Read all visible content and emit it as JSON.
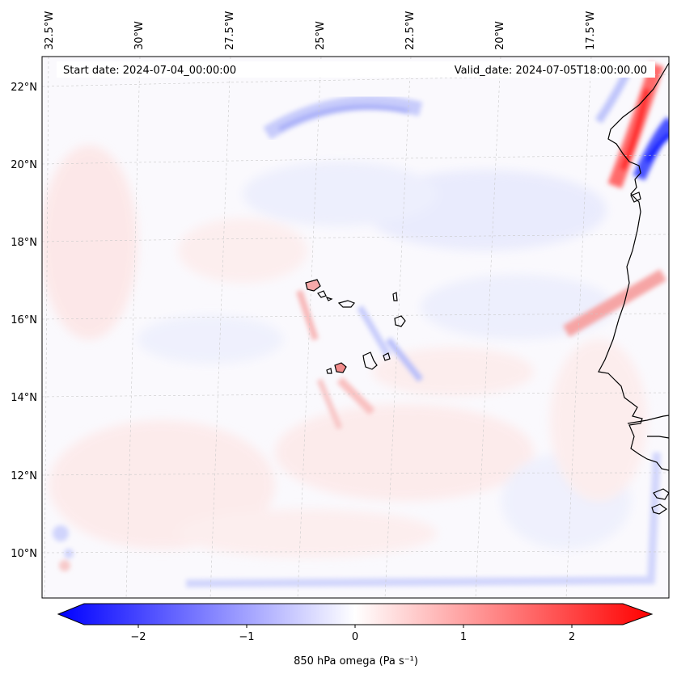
{
  "map": {
    "start_date": "Start date: 2024-07-04_00:00:00",
    "valid_date": "Valid_date: 2024-07-05T18:00:00.00",
    "lon_labels": [
      "32.5°W",
      "30°W",
      "27.5°W",
      "25°W",
      "22.5°W",
      "20°W",
      "17.5°W"
    ],
    "lat_labels": [
      "22°N",
      "20°N",
      "18°N",
      "16°N",
      "14°N",
      "12°N",
      "10°N"
    ],
    "extent": {
      "lon_min": -32.6,
      "lon_max": -15.0,
      "lat_min": 8.8,
      "lat_max": 22.8
    },
    "features": [
      "coastline",
      "gridlines",
      "filled-contours"
    ]
  },
  "colorbar": {
    "label": "850 hPa omega (Pa s⁻¹)",
    "ticks": [
      "−2",
      "−1",
      "0",
      "1",
      "2"
    ],
    "tick_values": [
      -2,
      -1,
      0,
      1,
      2
    ],
    "range": [
      -2.5,
      2.5
    ],
    "extend": "both",
    "cmap": "bwr",
    "colors": {
      "min": "#0000ff",
      "mid": "#ffffff",
      "max": "#ff0000"
    }
  }
}
